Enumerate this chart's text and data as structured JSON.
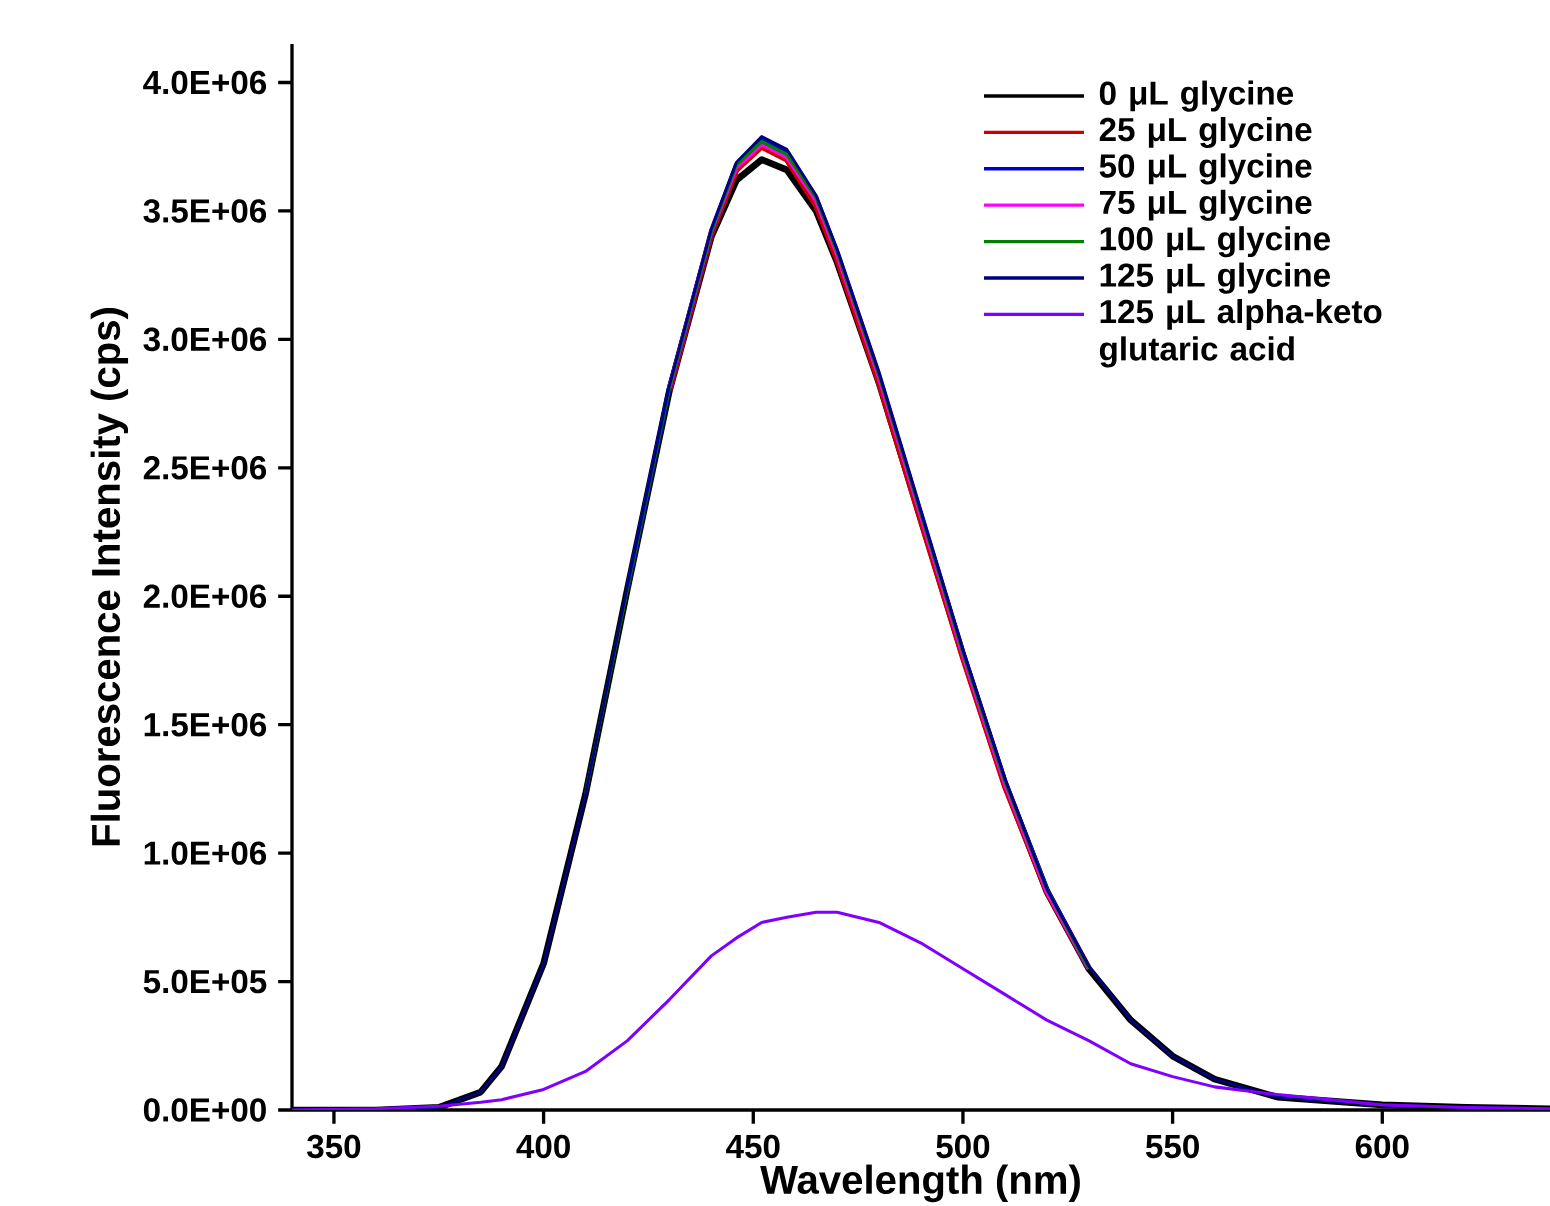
{
  "chart_data": {
    "type": "line",
    "xlabel": "Wavelength (nm)",
    "ylabel": "Fluorescence Intensity (cps)",
    "x": [
      340,
      360,
      375,
      385,
      390,
      400,
      410,
      420,
      430,
      440,
      446,
      452,
      458,
      465,
      470,
      480,
      490,
      500,
      510,
      520,
      530,
      540,
      550,
      560,
      575,
      600,
      620,
      640
    ],
    "series": [
      {
        "name": "0 μL glycine",
        "color": "#000000",
        "values": [
          0,
          0,
          10000,
          70000,
          170000,
          570000,
          1230000,
          2030000,
          2800000,
          3400000,
          3620000,
          3700000,
          3660000,
          3500000,
          3300000,
          2830000,
          2300000,
          1770000,
          1270000,
          850000,
          550000,
          350000,
          210000,
          120000,
          50000,
          20000,
          10000,
          5000
        ]
      },
      {
        "name": "25 μL glycine",
        "color": "#cc0000",
        "values": [
          null,
          null,
          null,
          null,
          null,
          null,
          null,
          null,
          2800000,
          3410000,
          3660000,
          3750000,
          3700000,
          3520000,
          3310000,
          2830000,
          2290000,
          1760000,
          1260000,
          850000,
          550000,
          null,
          null,
          null,
          null,
          null,
          null,
          null
        ]
      },
      {
        "name": "50 μL glycine",
        "color": "#0000cc",
        "values": [
          null,
          null,
          null,
          null,
          null,
          null,
          null,
          2030000,
          2810000,
          3420000,
          3680000,
          3780000,
          3730000,
          3550000,
          3340000,
          2860000,
          2320000,
          1780000,
          1280000,
          860000,
          550000,
          null,
          null,
          null,
          null,
          null,
          null,
          null
        ]
      },
      {
        "name": "75 μL glycine",
        "color": "#ff00ff",
        "values": [
          null,
          null,
          null,
          null,
          null,
          null,
          null,
          null,
          2810000,
          3420000,
          3670000,
          3760000,
          3710000,
          3540000,
          3330000,
          2850000,
          2310000,
          1770000,
          1270000,
          850000,
          550000,
          null,
          null,
          null,
          null,
          null,
          null,
          null
        ]
      },
      {
        "name": "100 μL glycine",
        "color": "#008000",
        "values": [
          null,
          null,
          null,
          null,
          null,
          null,
          1230000,
          2030000,
          2810000,
          3420000,
          3680000,
          3770000,
          3720000,
          3550000,
          3340000,
          2860000,
          2320000,
          1780000,
          1280000,
          860000,
          550000,
          null,
          null,
          null,
          null,
          null,
          null,
          null
        ]
      },
      {
        "name": "125 μL glycine",
        "color": "#000080",
        "values": [
          0,
          0,
          10000,
          70000,
          170000,
          570000,
          1230000,
          2040000,
          2820000,
          3430000,
          3690000,
          3790000,
          3740000,
          3560000,
          3350000,
          2870000,
          2330000,
          1790000,
          1290000,
          860000,
          560000,
          350000,
          210000,
          120000,
          50000,
          20000,
          10000,
          5000
        ]
      },
      {
        "name": "125 μL alpha-keto glutaric acid",
        "color": "#7f00ff",
        "values": [
          0,
          5000,
          15000,
          30000,
          40000,
          80000,
          150000,
          270000,
          430000,
          600000,
          670000,
          730000,
          750000,
          770000,
          770000,
          730000,
          650000,
          550000,
          450000,
          350000,
          270000,
          180000,
          130000,
          90000,
          60000,
          20000,
          10000,
          5000
        ]
      }
    ],
    "xlim": [
      340,
      640
    ],
    "ylim": [
      0,
      4150000
    ],
    "xticks": [
      350,
      400,
      450,
      500,
      550,
      600
    ],
    "yticks": [
      {
        "value": 0,
        "label": "0.0E+00"
      },
      {
        "value": 500000,
        "label": "5.0E+05"
      },
      {
        "value": 1000000,
        "label": "1.0E+06"
      },
      {
        "value": 1500000,
        "label": "1.5E+06"
      },
      {
        "value": 2000000,
        "label": "2.0E+06"
      },
      {
        "value": 2500000,
        "label": "2.5E+06"
      },
      {
        "value": 3000000,
        "label": "3.0E+06"
      },
      {
        "value": 3500000,
        "label": "3.5E+06"
      },
      {
        "value": 4000000,
        "label": "4.0E+06"
      }
    ],
    "grid": false,
    "legend": "top right",
    "marker": "none",
    "line_style": "solid"
  }
}
